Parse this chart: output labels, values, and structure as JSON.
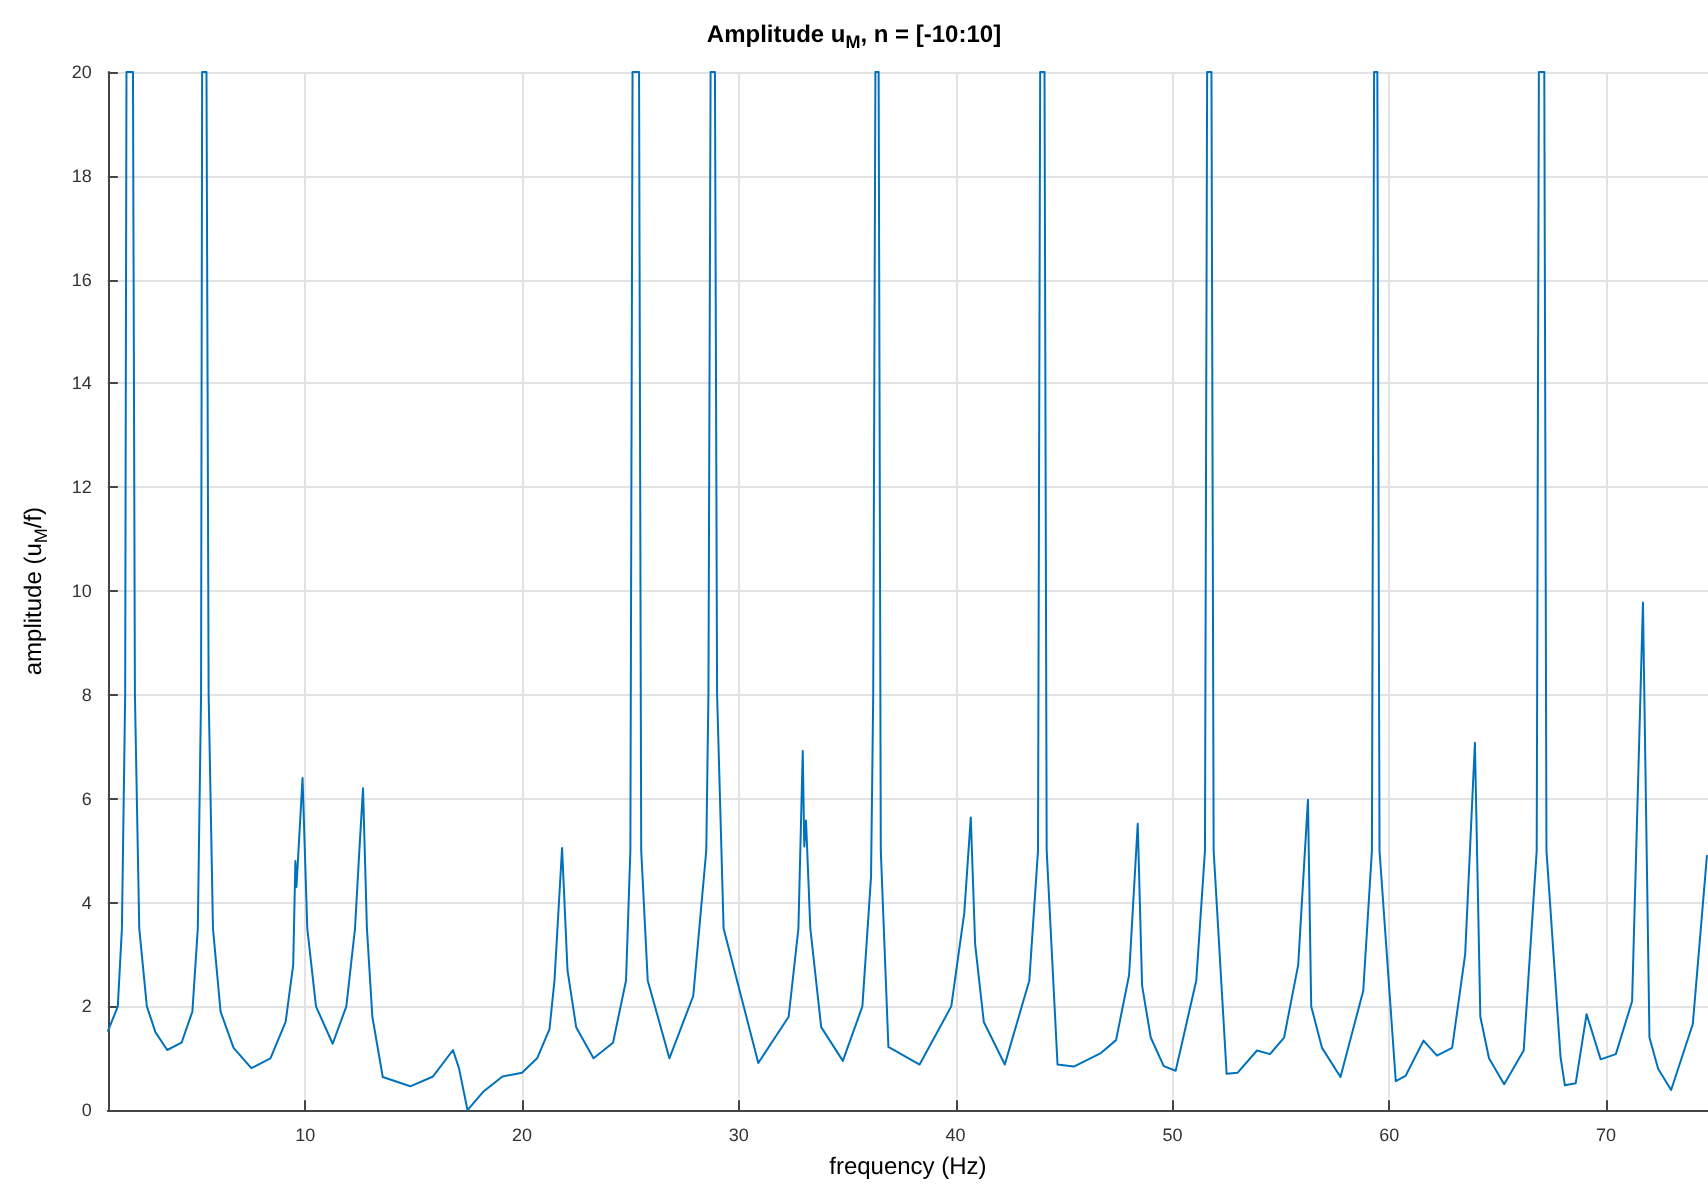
{
  "chart_data": {
    "type": "line",
    "title": "Amplitude u$_{M}$, n = [-10:10]",
    "xlabel": "frequency (Hz)",
    "ylabel": "amplitude (u$_{M}$/f)",
    "xlim": [
      0.9,
      74.7
    ],
    "xticks": [
      10,
      20,
      30,
      40,
      50,
      60,
      70
    ],
    "ylim": [
      0,
      20
    ],
    "yticks": [
      0,
      2,
      4,
      6,
      8,
      10,
      12,
      14,
      16,
      18,
      20
    ],
    "grid": true,
    "marker": "none",
    "line_style": "solid",
    "series": [
      {
        "color": "#0072bd",
        "x": [
          0.91,
          1.36,
          1.55,
          1.7,
          1.76,
          2.06,
          2.15,
          2.35,
          2.7,
          3.1,
          3.64,
          4.3,
          4.8,
          5.05,
          5.2,
          5.25,
          5.45,
          5.55,
          5.75,
          6.1,
          6.7,
          7.52,
          8.4,
          9.1,
          9.45,
          9.55,
          9.6,
          9.88,
          10.1,
          10.5,
          11.27,
          11.9,
          12.3,
          12.5,
          12.67,
          12.85,
          13.1,
          13.58,
          14.85,
          15.9,
          16.82,
          17.1,
          17.49,
          18.2,
          19.1,
          20.0,
          20.7,
          21.27,
          21.5,
          21.85,
          22.1,
          22.5,
          23.3,
          24.2,
          24.8,
          25.0,
          25.1,
          25.4,
          25.5,
          25.8,
          26.8,
          27.9,
          28.5,
          28.6,
          28.7,
          28.9,
          29.0,
          29.3,
          30.9,
          32.3,
          32.75,
          32.95,
          33.02,
          33.1,
          33.3,
          33.8,
          34.8,
          35.7,
          36.1,
          36.2,
          36.3,
          36.45,
          36.55,
          36.9,
          38.34,
          39.8,
          40.4,
          40.7,
          40.9,
          41.3,
          42.27,
          43.4,
          43.8,
          43.9,
          44.1,
          44.2,
          44.7,
          45.45,
          46.7,
          47.4,
          48.0,
          48.4,
          48.6,
          49.0,
          49.6,
          50.15,
          51.1,
          51.5,
          51.6,
          51.8,
          51.9,
          52.5,
          53.0,
          53.9,
          54.5,
          55.15,
          55.8,
          56.25,
          56.4,
          56.9,
          57.75,
          58.8,
          59.2,
          59.3,
          59.45,
          59.55,
          60.3,
          60.75,
          61.58,
          62.2,
          62.9,
          63.5,
          63.95,
          64.2,
          64.6,
          65.3,
          66.2,
          66.8,
          66.9,
          67.15,
          67.25,
          67.9,
          68.1,
          68.6,
          69.1,
          69.75,
          70.45,
          71.2,
          71.7,
          72.0,
          72.4,
          73.0,
          74.0,
          74.65
        ],
        "values": [
          1.53,
          2.0,
          3.5,
          8,
          20,
          20,
          8,
          3.5,
          2.0,
          1.5,
          1.16,
          1.3,
          1.9,
          3.5,
          8,
          20,
          20,
          8,
          3.5,
          1.9,
          1.2,
          0.81,
          1.0,
          1.7,
          2.8,
          4.8,
          4.3,
          6.4,
          3.5,
          2.0,
          1.28,
          2.0,
          3.5,
          5.0,
          6.2,
          3.5,
          1.8,
          0.64,
          0.46,
          0.65,
          1.16,
          0.8,
          0.0,
          0.35,
          0.65,
          0.72,
          1.0,
          1.56,
          2.5,
          5.05,
          2.7,
          1.6,
          1.0,
          1.3,
          2.5,
          5,
          20,
          20,
          5,
          2.5,
          1.0,
          2.2,
          5,
          8,
          20,
          20,
          8,
          3.5,
          0.91,
          1.8,
          3.5,
          6.92,
          5.08,
          5.58,
          3.5,
          1.6,
          0.95,
          2.0,
          4.5,
          8,
          20,
          20,
          5,
          1.22,
          0.88,
          2.0,
          3.8,
          5.64,
          3.2,
          1.7,
          0.88,
          2.5,
          5,
          20,
          20,
          5,
          0.88,
          0.84,
          1.1,
          1.35,
          2.6,
          5.52,
          2.4,
          1.4,
          0.85,
          0.76,
          2.5,
          5,
          20,
          20,
          5,
          0.7,
          0.72,
          1.15,
          1.08,
          1.4,
          2.8,
          5.98,
          2.0,
          1.2,
          0.64,
          2.3,
          5,
          20,
          20,
          5,
          0.56,
          0.66,
          1.34,
          1.05,
          1.2,
          3.0,
          7.08,
          1.8,
          1.0,
          0.5,
          1.15,
          5,
          20,
          20,
          5,
          1.02,
          0.48,
          0.52,
          1.85,
          0.98,
          1.08,
          2.1,
          9.78,
          1.4,
          0.8,
          0.39,
          1.66,
          4.9
        ]
      }
    ]
  }
}
